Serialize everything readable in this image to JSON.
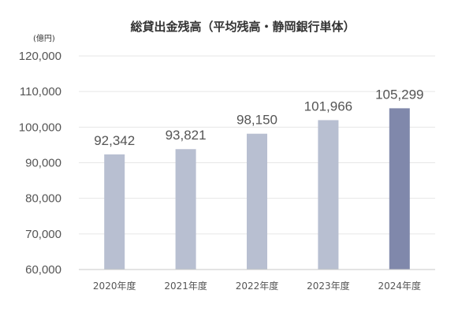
{
  "chart_data": {
    "type": "bar",
    "title": "総貸出金残高（平均残高・静岡銀行単体）",
    "unit_label": "(億円)",
    "categories": [
      "2020年度",
      "2021年度",
      "2022年度",
      "2023年度",
      "2024年度"
    ],
    "values": [
      92342,
      93821,
      98150,
      101966,
      105299
    ],
    "value_labels": [
      "92,342",
      "93,821",
      "98,150",
      "101,966",
      "105,299"
    ],
    "ylim": [
      60000,
      120000
    ],
    "yticks": [
      60000,
      70000,
      80000,
      90000,
      100000,
      110000,
      120000
    ],
    "ytick_labels": [
      "60,000",
      "70,000",
      "80,000",
      "90,000",
      "100,000",
      "110,000",
      "120,000"
    ],
    "grid": true,
    "colors": {
      "bar": "#b8bfd1",
      "bar_highlight": "#8088ab",
      "grid": "#e6e6e6",
      "axis": "#c8c8c8",
      "text": "#555555"
    },
    "highlight_index": 4
  }
}
